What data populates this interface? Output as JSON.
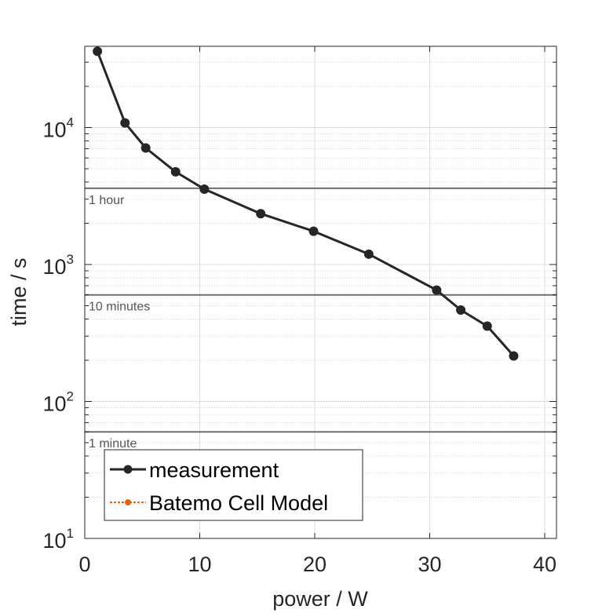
{
  "chart_data": {
    "type": "line",
    "xlabel": "power / W",
    "ylabel": "time / s",
    "xlim": [
      0,
      41
    ],
    "ylim": [
      10,
      40000
    ],
    "yscale": "log",
    "grid": true,
    "xticks": [
      0,
      10,
      20,
      30,
      40
    ],
    "yticks": [
      {
        "value": 10,
        "base": "10",
        "exp": "1"
      },
      {
        "value": 100,
        "base": "10",
        "exp": "2"
      },
      {
        "value": 1000,
        "base": "10",
        "exp": "3"
      },
      {
        "value": 10000,
        "base": "10",
        "exp": "4"
      }
    ],
    "reference_lines": [
      {
        "y": 3600,
        "label": "1 hour"
      },
      {
        "y": 600,
        "label": "10 minutes"
      },
      {
        "y": 60,
        "label": "1 minute"
      }
    ],
    "series": [
      {
        "name": "measurement",
        "color": "#262626",
        "x": [
          1.1,
          3.5,
          5.3,
          7.9,
          10.4,
          15.3,
          19.9,
          24.7,
          30.6,
          32.7,
          35.0,
          37.3
        ],
        "y": [
          36000,
          10800,
          7100,
          4750,
          3550,
          2350,
          1750,
          1190,
          650,
          465,
          355,
          215
        ]
      },
      {
        "name": "Batemo Cell Model",
        "color": "#e8610f",
        "x": [],
        "y": []
      }
    ],
    "legend_position": "bottom-left"
  }
}
